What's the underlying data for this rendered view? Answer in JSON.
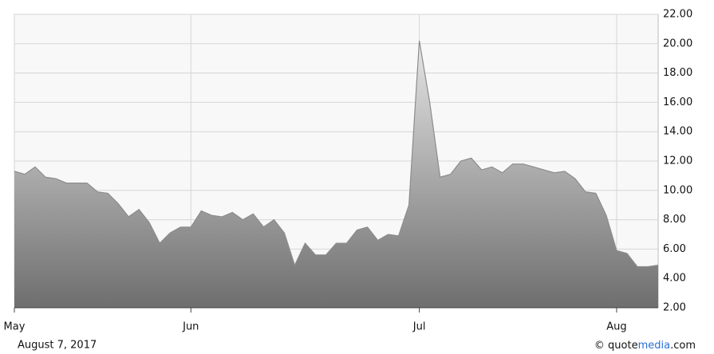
{
  "chart_data": {
    "type": "area",
    "categories": [
      "May",
      null,
      null,
      null,
      null,
      null,
      null,
      null,
      null,
      null,
      null,
      null,
      null,
      null,
      null,
      null,
      null,
      "Jun",
      null,
      null,
      null,
      null,
      null,
      null,
      null,
      null,
      null,
      null,
      null,
      null,
      null,
      null,
      null,
      null,
      null,
      null,
      null,
      null,
      null,
      "Jul",
      null,
      null,
      null,
      null,
      null,
      null,
      null,
      null,
      null,
      null,
      null,
      null,
      null,
      null,
      null,
      null,
      null,
      null,
      "Aug",
      null,
      null,
      null,
      null
    ],
    "values": [
      11.3,
      11.1,
      11.6,
      10.9,
      10.8,
      10.5,
      10.5,
      10.5,
      9.9,
      9.8,
      9.1,
      8.2,
      8.7,
      7.8,
      6.4,
      7.1,
      7.5,
      7.5,
      8.6,
      8.3,
      8.2,
      8.5,
      8.0,
      8.4,
      7.5,
      8.0,
      7.1,
      4.9,
      6.4,
      5.6,
      5.6,
      6.4,
      6.4,
      7.3,
      7.5,
      6.6,
      7.0,
      6.9,
      9.0,
      20.2,
      16.0,
      10.9,
      11.1,
      12.0,
      12.2,
      11.4,
      11.6,
      11.2,
      11.8,
      11.8,
      11.6,
      11.4,
      11.2,
      11.3,
      10.8,
      9.9,
      9.8,
      8.3,
      5.9,
      5.7,
      4.8,
      4.8,
      4.9
    ],
    "color": "#8c8c8c",
    "ylim": [
      2,
      22
    ],
    "yticks": [
      {
        "value": 2,
        "label": "2.00"
      },
      {
        "value": 4,
        "label": "4.00"
      },
      {
        "value": 6,
        "label": "6.00"
      },
      {
        "value": 8,
        "label": "8.00"
      },
      {
        "value": 10,
        "label": "10.00"
      },
      {
        "value": 12,
        "label": "12.00"
      },
      {
        "value": 14,
        "label": "14.00"
      },
      {
        "value": 16,
        "label": "16.00"
      },
      {
        "value": 18,
        "label": "18.00"
      },
      {
        "value": 20,
        "label": "20.00"
      },
      {
        "value": 22,
        "label": "22.00"
      }
    ],
    "grid": true,
    "date": "August 7, 2017",
    "credit": [
      "© quote",
      "media",
      ".com"
    ]
  }
}
